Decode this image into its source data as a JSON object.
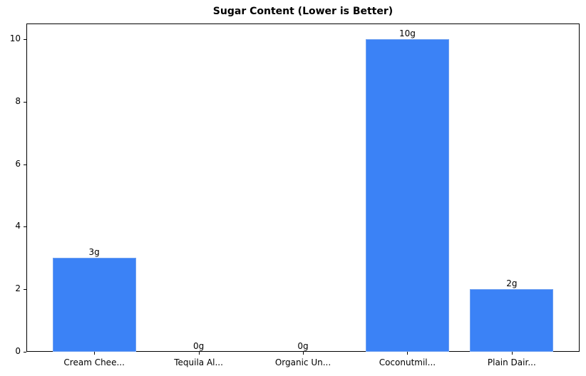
{
  "chart_data": {
    "type": "bar",
    "title": "Sugar Content (Lower is Better)",
    "xlabel": "",
    "ylabel": "",
    "categories": [
      "Cream Chee...",
      "Tequila Al...",
      "Organic Un...",
      "Coconutmil...",
      "Plain Dair..."
    ],
    "values": [
      3,
      0,
      0,
      10,
      2
    ],
    "value_labels": [
      "3g",
      "0g",
      "0g",
      "10g",
      "2g"
    ],
    "ylim": [
      0,
      10.5
    ],
    "yticks": [
      0,
      2,
      4,
      6,
      8,
      10
    ],
    "grid": false,
    "legend": null,
    "bar_color": "#3b82f6"
  }
}
